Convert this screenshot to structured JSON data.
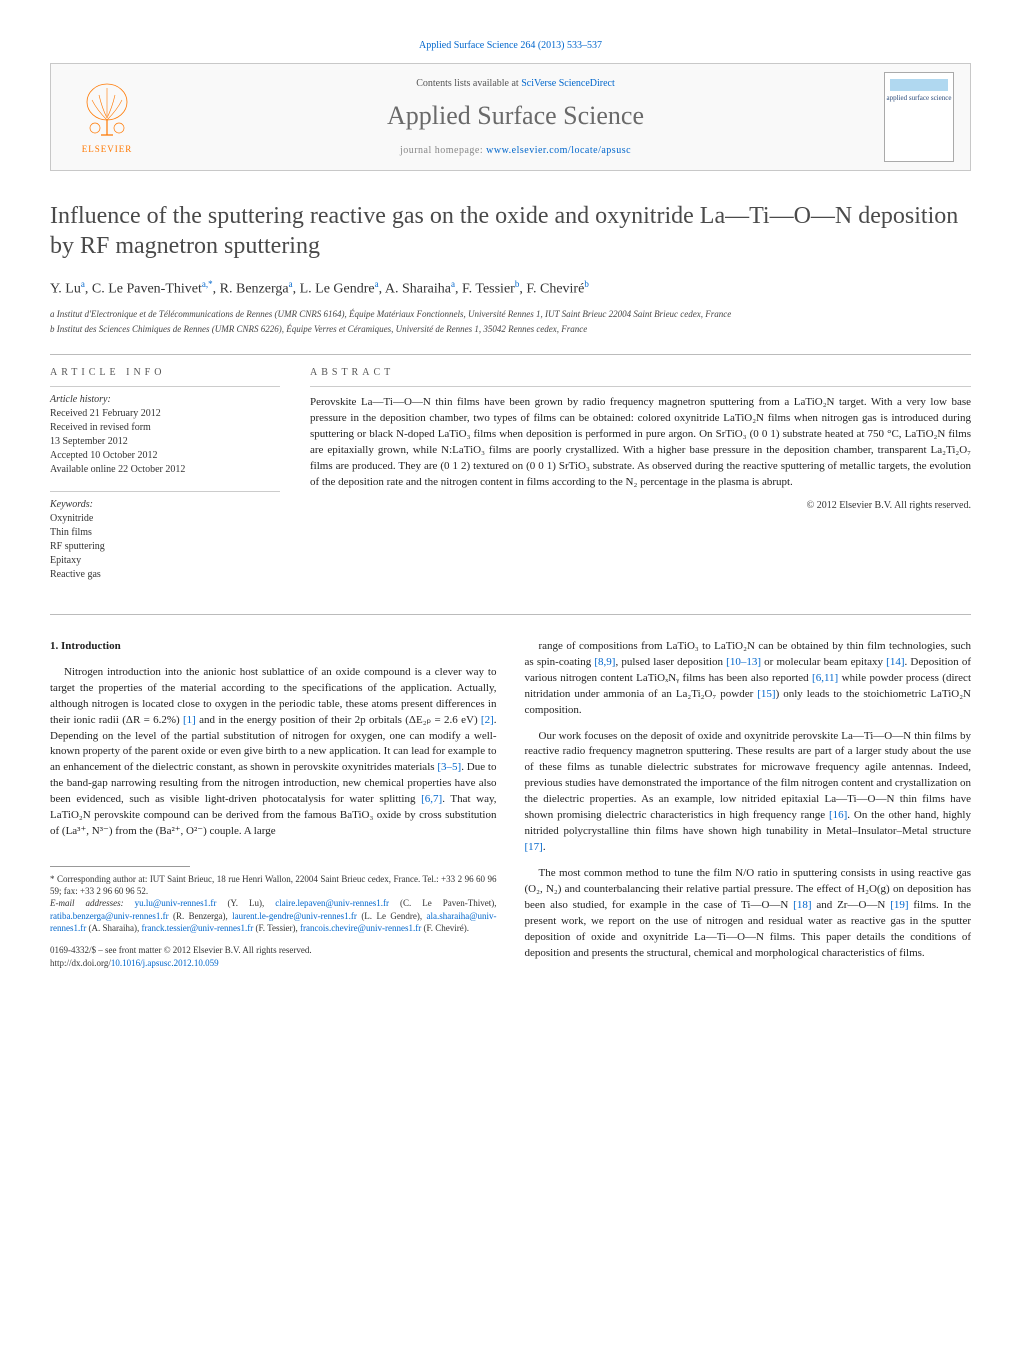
{
  "header": {
    "citation": "Applied Surface Science 264 (2013) 533–537",
    "contents_prefix": "Contents lists available at ",
    "contents_link": "SciVerse ScienceDirect",
    "journal": "Applied Surface Science",
    "homepage_prefix": "journal homepage: ",
    "homepage_url": "www.elsevier.com/locate/apsusc",
    "elsevier": "ELSEVIER",
    "cover_label": "applied surface science"
  },
  "title": "Influence of the sputtering reactive gas on the oxide and oxynitride La—Ti—O—N deposition by RF magnetron sputtering",
  "authors_html": "Y. Lu<sup>a</sup>, C. Le Paven-Thivet<sup>a,*</sup>, R. Benzerga<sup>a</sup>, L. Le Gendre<sup>a</sup>, A. Sharaiha<sup>a</sup>, F. Tessier<sup>b</sup>, F. Cheviré<sup>b</sup>",
  "affiliations": [
    "a Institut d'Electronique et de Télécommunications de Rennes (UMR CNRS 6164), Équipe Matériaux Fonctionnels, Université Rennes 1, IUT Saint Brieuc 22004 Saint Brieuc cedex, France",
    "b Institut des Sciences Chimiques de Rennes (UMR CNRS 6226), Équipe Verres et Céramiques, Université de Rennes 1, 35042 Rennes cedex, France"
  ],
  "article_info": {
    "heading": "ARTICLE INFO",
    "history_label": "Article history:",
    "history": [
      "Received 21 February 2012",
      "Received in revised form",
      "13 September 2012",
      "Accepted 10 October 2012",
      "Available online 22 October 2012"
    ],
    "keywords_label": "Keywords:",
    "keywords": [
      "Oxynitride",
      "Thin films",
      "RF sputtering",
      "Epitaxy",
      "Reactive gas"
    ]
  },
  "abstract": {
    "heading": "ABSTRACT",
    "text": "Perovskite La—Ti—O—N thin films have been grown by radio frequency magnetron sputtering from a LaTiO₂N target. With a very low base pressure in the deposition chamber, two types of films can be obtained: colored oxynitride LaTiO₂N films when nitrogen gas is introduced during sputtering or black N-doped LaTiO₃ films when deposition is performed in pure argon. On SrTiO₃ (0 0 1) substrate heated at 750 °C, LaTiO₂N films are epitaxially grown, while N:LaTiO₃ films are poorly crystallized. With a higher base pressure in the deposition chamber, transparent La₂Ti₂O₇ films are produced. They are (0 1 2) textured on (0 0 1) SrTiO₃ substrate. As observed during the reactive sputtering of metallic targets, the evolution of the deposition rate and the nitrogen content in films according to the N₂ percentage in the plasma is abrupt.",
    "copyright": "© 2012 Elsevier B.V. All rights reserved."
  },
  "body": {
    "section_heading": "1. Introduction",
    "left_paras": [
      "Nitrogen introduction into the anionic host sublattice of an oxide compound is a clever way to target the properties of the material according to the specifications of the application. Actually, although nitrogen is located close to oxygen in the periodic table, these atoms present differences in their ionic radii (ΔR = 6.2%) [1] and in the energy position of their 2p orbitals (ΔE₂ₚ = 2.6 eV) [2]. Depending on the level of the partial substitution of nitrogen for oxygen, one can modify a well-known property of the parent oxide or even give birth to a new application. It can lead for example to an enhancement of the dielectric constant, as shown in perovskite oxynitrides materials [3–5]. Due to the band-gap narrowing resulting from the nitrogen introduction, new chemical properties have also been evidenced, such as visible light-driven photocatalysis for water splitting [6,7]. That way, LaTiO₂N perovskite compound can be derived from the famous BaTiO₃ oxide by cross substitution of (La³⁺, N³⁻) from the (Ba²⁺, O²⁻) couple. A large"
    ],
    "right_paras": [
      "range of compositions from LaTiO₃ to LaTiO₂N can be obtained by thin film technologies, such as spin-coating [8,9], pulsed laser deposition [10–13] or molecular beam epitaxy [14]. Deposition of various nitrogen content LaTiOₓNᵧ films has been also reported [6,11] while powder process (direct nitridation under ammonia of an La₂Ti₂O₇ powder [15]) only leads to the stoichiometric LaTiO₂N composition.",
      "Our work focuses on the deposit of oxide and oxynitride perovskite La—Ti—O—N thin films by reactive radio frequency magnetron sputtering. These results are part of a larger study about the use of these films as tunable dielectric substrates for microwave frequency agile antennas. Indeed, previous studies have demonstrated the importance of the film nitrogen content and crystallization on the dielectric properties. As an example, low nitrided epitaxial La—Ti—O—N thin films have shown promising dielectric characteristics in high frequency range [16]. On the other hand, highly nitrided polycrystalline thin films have shown high tunability in Metal–Insulator–Metal structure [17].",
      "The most common method to tune the film N/O ratio in sputtering consists in using reactive gas (O₂, N₂) and counterbalancing their relative partial pressure. The effect of H₂O(g) on deposition has been also studied, for example in the case of Ti—O—N [18] and Zr—O—N [19] films. In the present work, we report on the use of nitrogen and residual water as reactive gas in the sputter deposition of oxide and oxynitride La—Ti—O—N films. This paper details the conditions of deposition and presents the structural, chemical and morphological characteristics of films."
    ]
  },
  "footnote": {
    "corr": "* Corresponding author at: IUT Saint Brieuc, 18 rue Henri Wallon, 22004 Saint Brieuc cedex, France. Tel.: +33 2 96 60 96 59; fax: +33 2 96 60 96 52.",
    "email_label": "E-mail addresses: ",
    "emails": [
      {
        "addr": "yu.lu@univ-rennes1.fr",
        "who": "(Y. Lu)"
      },
      {
        "addr": "claire.lepaven@univ-rennes1.fr",
        "who": "(C. Le Paven-Thivet)"
      },
      {
        "addr": "ratiba.benzerga@univ-rennes1.fr",
        "who": "(R. Benzerga)"
      },
      {
        "addr": "laurent.le-gendre@univ-rennes1.fr",
        "who": "(L. Le Gendre)"
      },
      {
        "addr": "ala.sharaiha@univ-rennes1.fr",
        "who": "(A. Sharaiha)"
      },
      {
        "addr": "franck.tessier@univ-rennes1.fr",
        "who": "(F. Tessier)"
      },
      {
        "addr": "francois.chevire@univ-rennes1.fr",
        "who": "(F. Cheviré)"
      }
    ]
  },
  "doi": {
    "line1": "0169-4332/$ – see front matter © 2012 Elsevier B.V. All rights reserved.",
    "line2_prefix": "http://dx.doi.org/",
    "line2_link": "10.1016/j.apsusc.2012.10.059"
  },
  "colors": {
    "link": "#0066cc",
    "elsevier_orange": "#ff7800",
    "gray_title": "#4a4a4a",
    "border": "#c8c8c8"
  }
}
